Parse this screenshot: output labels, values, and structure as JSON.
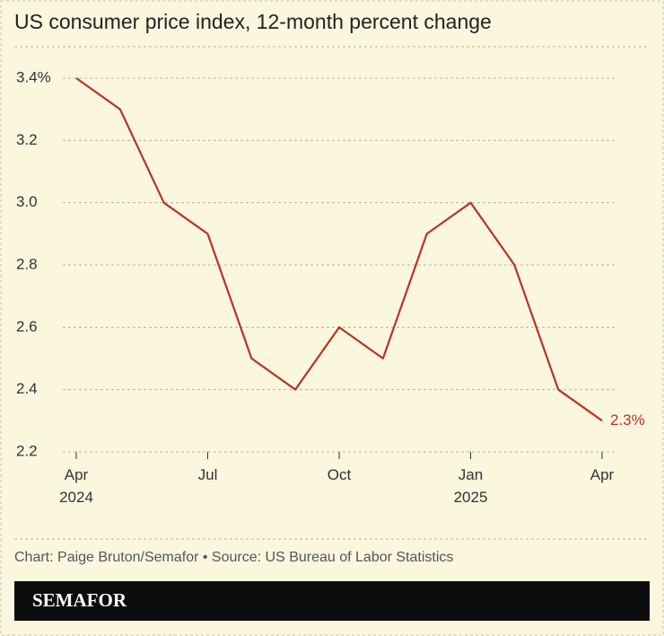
{
  "chart_data": {
    "type": "line",
    "title": "US consumer price index, 12-month percent change",
    "categories": [
      "Apr\n2024",
      null,
      null,
      "Jul",
      null,
      null,
      "Oct",
      null,
      null,
      "Jan\n2025",
      null,
      null,
      "Apr"
    ],
    "series": [
      {
        "color": "#b83325",
        "values": [
          3.4,
          3.3,
          3.0,
          2.9,
          2.5,
          2.4,
          2.6,
          2.5,
          2.9,
          3.0,
          2.8,
          2.4,
          2.3
        ],
        "value_labels": [
          null,
          null,
          null,
          null,
          null,
          null,
          null,
          null,
          null,
          null,
          null,
          null,
          "2.3%"
        ]
      }
    ],
    "ylim": [
      2.2,
      3.4
    ],
    "yticks": [
      2.2,
      2.4,
      2.6,
      2.8,
      {
        "value": 3.0,
        "label": "3.0"
      },
      3.2,
      {
        "value": 3.4,
        "label": "3.4%"
      }
    ],
    "grid": true,
    "source": "Chart: Paige Bruton/Semafor • Source: US Bureau of Labor Statistics",
    "brand": "SEMAFOR"
  }
}
